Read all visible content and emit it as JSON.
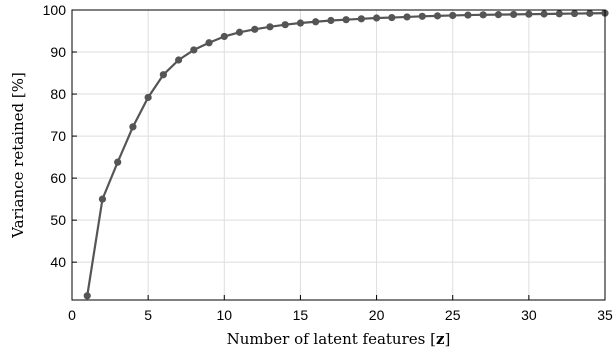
{
  "chart_data": {
    "type": "line",
    "xlabel": "Number of latent features [z]",
    "ylabel": "Variance retained [%]",
    "xlim": [
      0,
      35
    ],
    "ylim": [
      31,
      100
    ],
    "xticks": [
      0,
      5,
      10,
      15,
      20,
      25,
      30,
      35
    ],
    "yticks": [
      40,
      50,
      60,
      70,
      80,
      90,
      100
    ],
    "grid": true,
    "legend": "none",
    "series_color": "#555555",
    "x": [
      1,
      2,
      3,
      4,
      5,
      6,
      7,
      8,
      9,
      10,
      11,
      12,
      13,
      14,
      15,
      16,
      17,
      18,
      19,
      20,
      21,
      22,
      23,
      24,
      25,
      26,
      27,
      28,
      29,
      30,
      31,
      32,
      33,
      34,
      35
    ],
    "series": [
      {
        "values": [
          32,
          55,
          63.8,
          72.2,
          79.2,
          84.6,
          88.1,
          90.5,
          92.2,
          93.7,
          94.7,
          95.4,
          96.0,
          96.5,
          96.9,
          97.2,
          97.5,
          97.7,
          97.9,
          98.1,
          98.2,
          98.35,
          98.5,
          98.6,
          98.7,
          98.8,
          98.85,
          98.9,
          98.95,
          99.0,
          99.05,
          99.1,
          99.15,
          99.2,
          99.25
        ]
      }
    ]
  }
}
